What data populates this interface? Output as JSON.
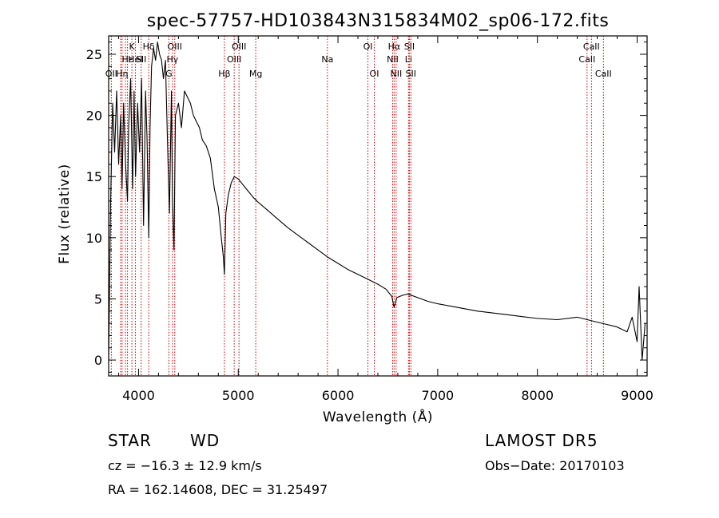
{
  "chart_data": {
    "type": "line",
    "title": "spec-57757-HD103843N315834M02_sp06-172.fits",
    "xlabel": "Wavelength (Å)",
    "ylabel": "Flux (relative)",
    "xlim": [
      3700,
      9100
    ],
    "ylim": [
      -1.3,
      26.5
    ],
    "xticks": [
      4000,
      5000,
      6000,
      7000,
      8000,
      9000
    ],
    "yticks": [
      0,
      5,
      10,
      15,
      20,
      25
    ],
    "grid": false,
    "series": [
      {
        "x": [
          3700,
          3720,
          3740,
          3760,
          3780,
          3800,
          3820,
          3835,
          3850,
          3870,
          3889,
          3900,
          3920,
          3940,
          3955,
          3970,
          3990,
          4010,
          4030,
          4050,
          4070,
          4085,
          4102,
          4115,
          4130,
          4150,
          4170,
          4190,
          4210,
          4230,
          4250,
          4270,
          4290,
          4310,
          4330,
          4340,
          4355,
          4370,
          4400,
          4430,
          4460,
          4490,
          4520,
          4550,
          4580,
          4610,
          4640,
          4680,
          4720,
          4760,
          4800,
          4830,
          4850,
          4861,
          4875,
          4900,
          4930,
          4960,
          5000,
          5050,
          5100,
          5150,
          5200,
          5300,
          5400,
          5500,
          5600,
          5700,
          5800,
          5900,
          6000,
          6100,
          6200,
          6300,
          6400,
          6480,
          6540,
          6563,
          6590,
          6650,
          6700,
          6800,
          6900,
          7000,
          7200,
          7400,
          7600,
          7800,
          8000,
          8200,
          8400,
          8500,
          8600,
          8700,
          8800,
          8900,
          8950,
          9000,
          9020,
          9050,
          9080
        ],
        "y": [
          0,
          13,
          21,
          17,
          22,
          16,
          20,
          14,
          21,
          16,
          13,
          19,
          23,
          14,
          22,
          15,
          21,
          17,
          23,
          11,
          22,
          18,
          10,
          19,
          24,
          25.5,
          24.5,
          26,
          25,
          24.5,
          23,
          24.5,
          18,
          12,
          22,
          13,
          9,
          20,
          21,
          19,
          22,
          21.5,
          21,
          20,
          19.5,
          19,
          18,
          17.5,
          16.5,
          14,
          12.5,
          10,
          8.5,
          7,
          12,
          13.5,
          14.5,
          15,
          14.8,
          14.3,
          13.8,
          13.3,
          12.9,
          12.2,
          11.5,
          10.8,
          10.2,
          9.6,
          9,
          8.4,
          7.9,
          7.4,
          7,
          6.6,
          6.2,
          5.8,
          5.2,
          4.3,
          5.1,
          5.3,
          5.4,
          5.1,
          4.8,
          4.6,
          4.3,
          4,
          3.8,
          3.6,
          3.4,
          3.3,
          3.5,
          3.3,
          3.1,
          2.9,
          2.7,
          2.3,
          3.5,
          1.5,
          6,
          0,
          3
        ]
      }
    ],
    "lines": [
      {
        "wl": 3727,
        "label": "OII",
        "row": 3
      },
      {
        "wl": 3820,
        "label": "",
        "row": 0
      },
      {
        "wl": 3835,
        "label": "Hη",
        "row": 3
      },
      {
        "wl": 3869,
        "label": "",
        "row": 0
      },
      {
        "wl": 3889,
        "label": "Hε",
        "row": 2
      },
      {
        "wl": 3933,
        "label": "K",
        "row": 1
      },
      {
        "wl": 3968,
        "label": "HeI",
        "row": 2
      },
      {
        "wl": 4026,
        "label": "SII",
        "row": 2
      },
      {
        "wl": 4102,
        "label": "Hδ",
        "row": 1
      },
      {
        "wl": 4304,
        "label": "G",
        "row": 3
      },
      {
        "wl": 4340,
        "label": "Hγ",
        "row": 2
      },
      {
        "wl": 4363,
        "label": "OIII",
        "row": 1
      },
      {
        "wl": 4861,
        "label": "Hβ",
        "row": 3
      },
      {
        "wl": 4959,
        "label": "OIII",
        "row": 2
      },
      {
        "wl": 5007,
        "label": "OIII",
        "row": 1
      },
      {
        "wl": 5175,
        "label": "Mg",
        "row": 3
      },
      {
        "wl": 5894,
        "label": "Na",
        "row": 2
      },
      {
        "wl": 6300,
        "label": "OI",
        "row": 1
      },
      {
        "wl": 6364,
        "label": "OI",
        "row": 3
      },
      {
        "wl": 6548,
        "label": "NII",
        "row": 2
      },
      {
        "wl": 6563,
        "label": "Hα",
        "row": 1
      },
      {
        "wl": 6583,
        "label": "NII",
        "row": 3
      },
      {
        "wl": 6707,
        "label": "Li",
        "row": 2
      },
      {
        "wl": 6716,
        "label": "SII",
        "row": 1
      },
      {
        "wl": 6731,
        "label": "SII",
        "row": 3
      },
      {
        "wl": 8498,
        "label": "CaII",
        "row": 2
      },
      {
        "wl": 8542,
        "label": "CaII",
        "row": 1
      },
      {
        "wl": 8662,
        "label": "CaII",
        "row": 3
      }
    ],
    "colors": {
      "spectrum": "#000000",
      "line_markers": "#cc0000",
      "axes": "#000000"
    }
  },
  "info": {
    "object_class": "STAR",
    "subclass": "WD",
    "survey": "LAMOST DR5",
    "redshift": "cz = −16.3 ± 12.9 km/s",
    "obs_date": "Obs−Date: 20170103",
    "coords": "RA = 162.14608, DEC =  31.25497"
  }
}
